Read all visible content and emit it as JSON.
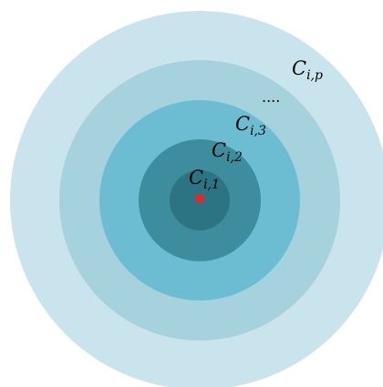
{
  "diagram": {
    "rings": [
      {
        "name": "ring-p",
        "color": "#c9e4ec"
      },
      {
        "name": "ring-4",
        "color": "#a6d2de"
      },
      {
        "name": "ring-3",
        "color": "#6dbdd2"
      },
      {
        "name": "ring-2",
        "color": "#3d8d9f"
      },
      {
        "name": "ring-1",
        "color": "#2c7383"
      }
    ],
    "center_point": {
      "color": "#e8252a"
    },
    "labels": {
      "c1": {
        "base": "C",
        "sub": "i,1"
      },
      "c2": {
        "base": "C",
        "sub": "i,2"
      },
      "c3": {
        "base": "C",
        "sub": "i,3"
      },
      "ellipsis": "....",
      "cp": {
        "base": "C",
        "sub": "i,p"
      }
    }
  }
}
